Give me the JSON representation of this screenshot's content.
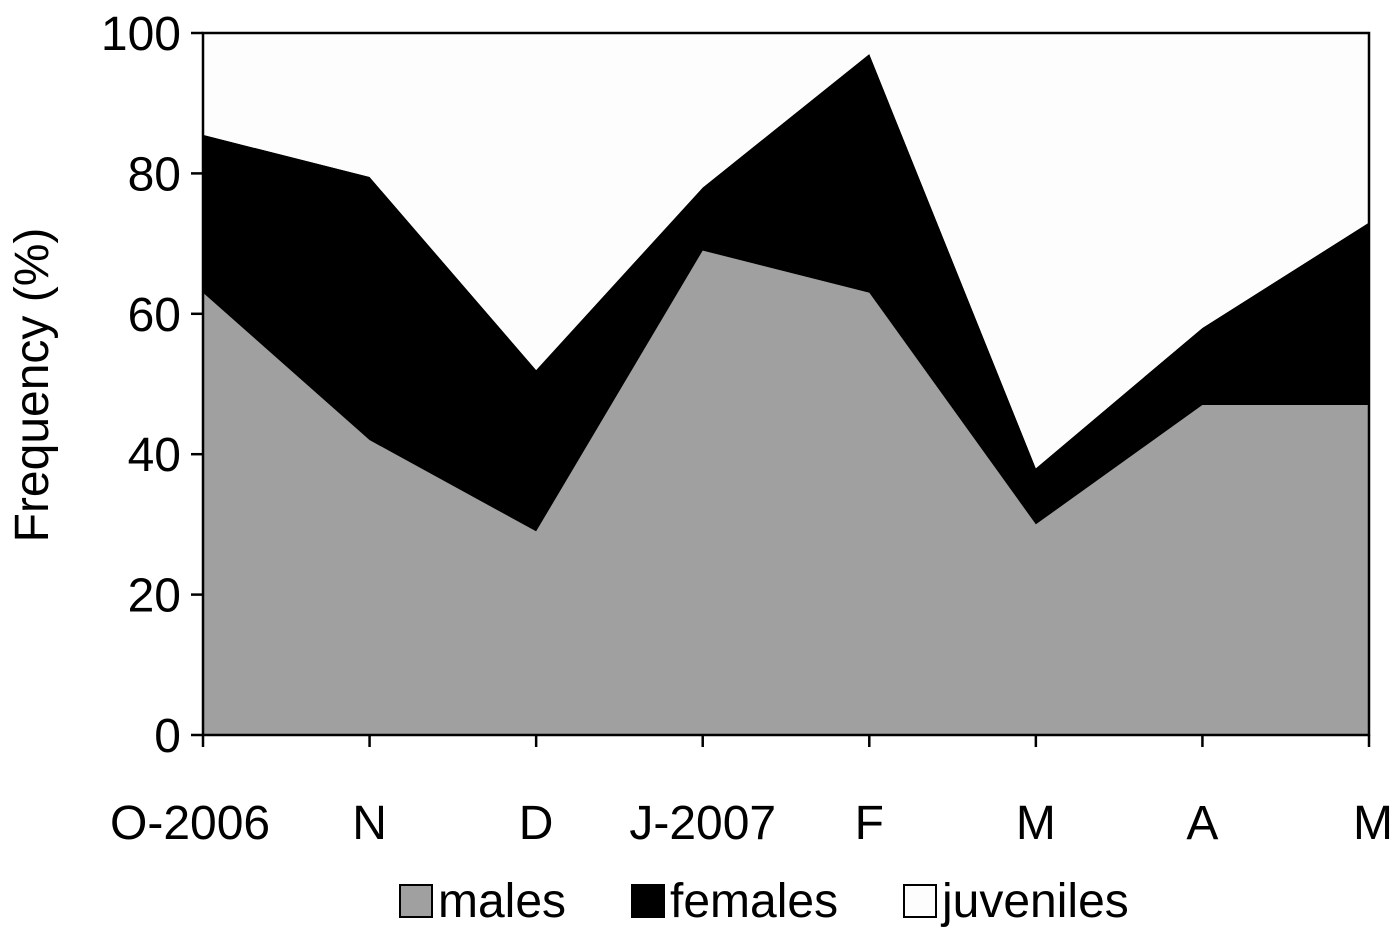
{
  "chart_data": {
    "type": "area",
    "stacked": true,
    "title": "",
    "xlabel": "",
    "ylabel": "Frequency (%)",
    "ylim": [
      0,
      100
    ],
    "yticks": [
      0,
      20,
      40,
      60,
      80,
      100
    ],
    "grid": false,
    "legend_position": "bottom",
    "categories": [
      "O-2006",
      "N",
      "D",
      "J-2007",
      "F",
      "M",
      "A",
      "M"
    ],
    "series": [
      {
        "name": "males",
        "color": "#a0a0a0",
        "values": [
          63,
          42,
          29,
          69,
          63,
          30,
          47,
          47
        ]
      },
      {
        "name": "females",
        "color": "#000000",
        "values": [
          22.5,
          37.5,
          23,
          9,
          34,
          8,
          11,
          26
        ]
      },
      {
        "name": "juveniles",
        "color": "#fdfdfd",
        "values": [
          14.5,
          20.5,
          48,
          22,
          3,
          62,
          42,
          27
        ]
      }
    ]
  }
}
